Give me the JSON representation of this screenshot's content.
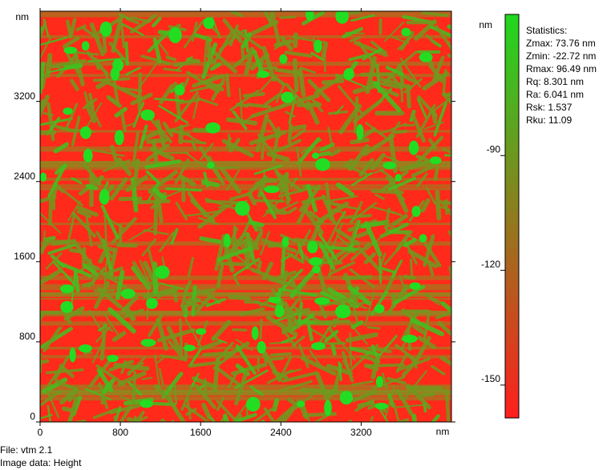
{
  "chart_data": {
    "type": "image",
    "x_label": "nm",
    "y_label": "nm",
    "xlim": [
      0,
      4100
    ],
    "ylim": [
      0,
      4100
    ],
    "xticks": [
      0,
      800,
      1600,
      2400,
      3200
    ],
    "yticks": [
      0,
      800,
      1600,
      2400,
      3200
    ],
    "colorbar": {
      "label": "nm",
      "lim": [
        -158.6,
        -53.1
      ],
      "ticks": [
        -90,
        -120,
        -150
      ],
      "colors": [
        "#ff1e1e",
        "#1fd81f"
      ]
    },
    "statistics": [
      "Statistics:",
      "Zmax: 73.76 nm",
      "Zmin: -22.72 nm",
      "Rmax: 96.49 nm",
      "Rq: 8.301 nm",
      "Ra: 6.041 nm",
      "Rsk: 1.537",
      "Rku: 11.09"
    ]
  },
  "footer": [
    "File: vtm 2.1",
    "Image data: Height"
  ]
}
